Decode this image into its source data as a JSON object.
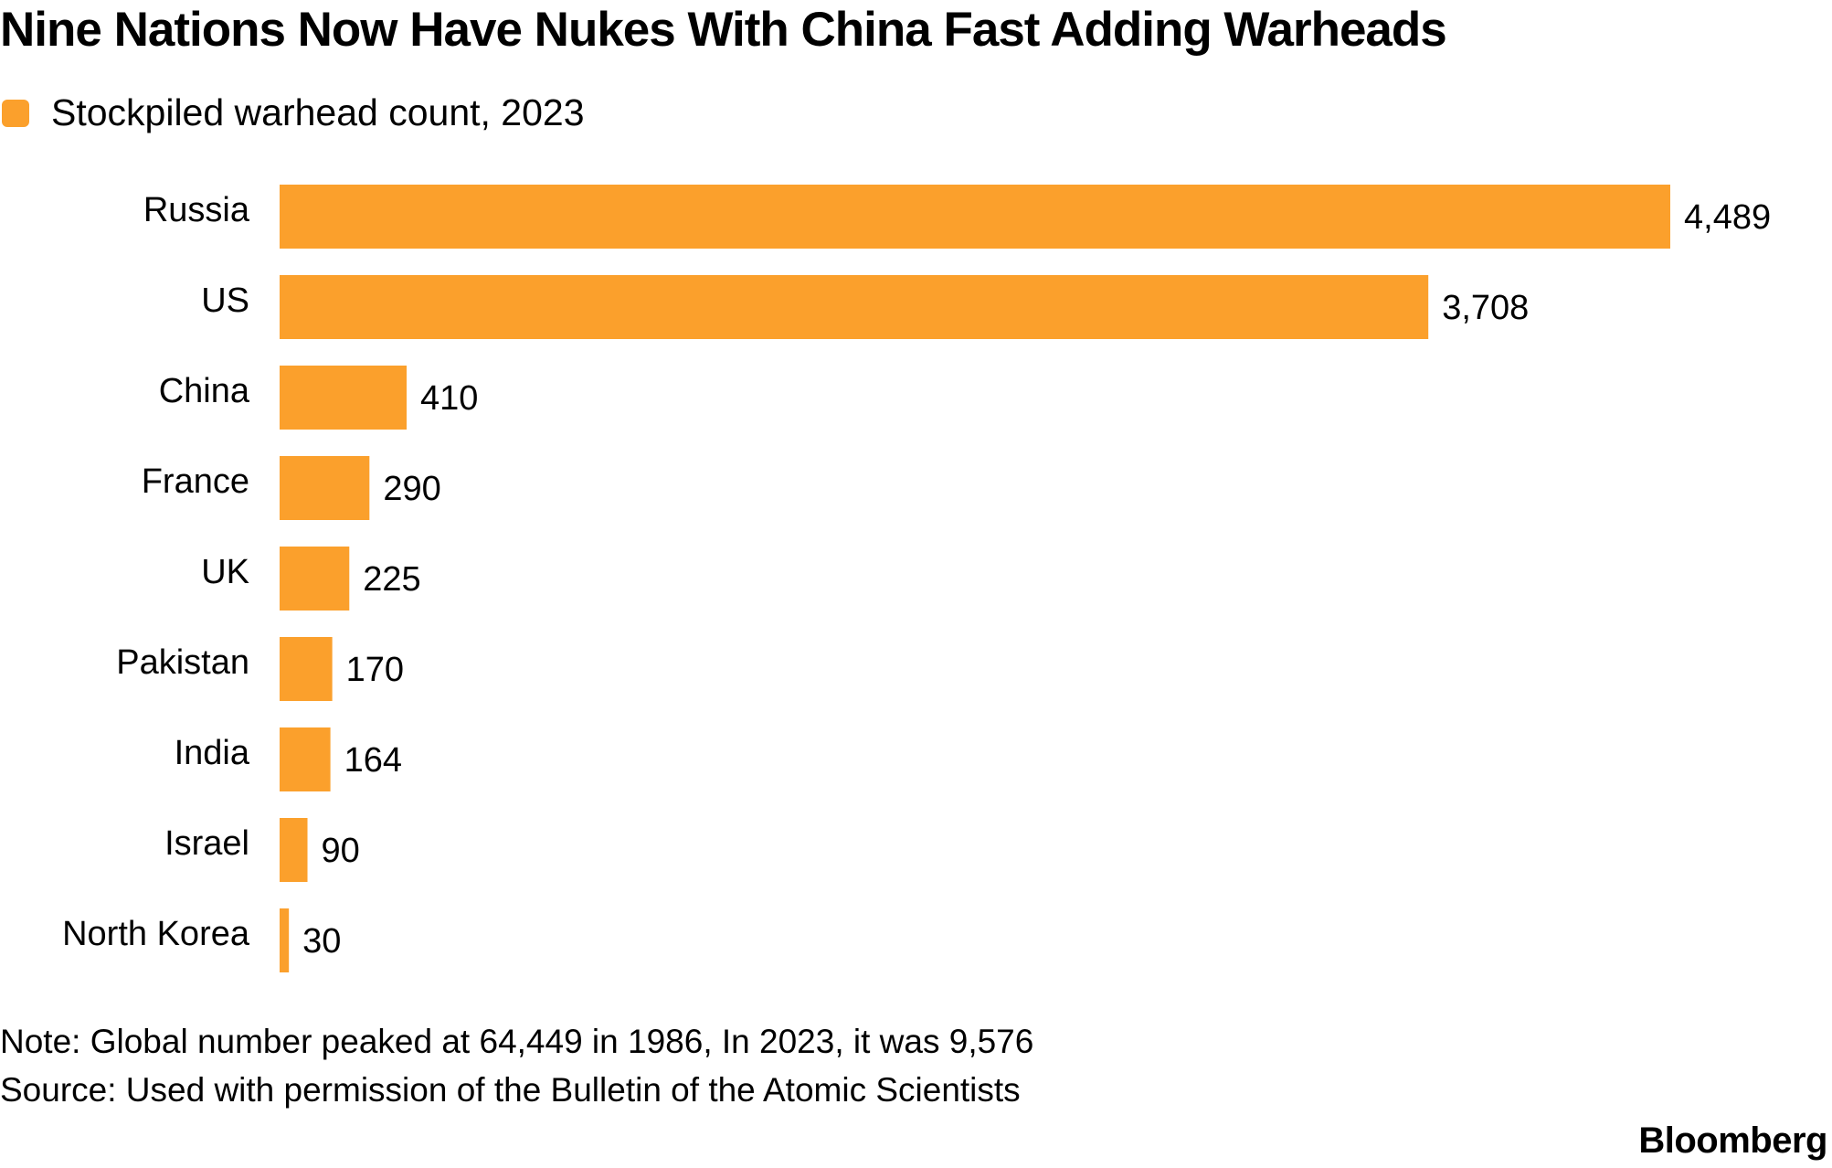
{
  "title": "Nine Nations Now Have Nukes With China Fast Adding Warheads",
  "legend": {
    "label": "Stockpiled warhead count, 2023",
    "color": "#fba02c"
  },
  "chart_data": {
    "type": "bar",
    "orientation": "horizontal",
    "title": "Nine Nations Now Have Nukes With China Fast Adding Warheads",
    "series": [
      {
        "name": "Stockpiled warhead count, 2023",
        "values": [
          4489,
          3708,
          410,
          290,
          225,
          170,
          164,
          90,
          30
        ]
      }
    ],
    "categories": [
      "Russia",
      "US",
      "China",
      "France",
      "UK",
      "Pakistan",
      "India",
      "Israel",
      "North Korea"
    ],
    "value_labels": [
      "4,489",
      "3,708",
      "410",
      "290",
      "225",
      "170",
      "164",
      "90",
      "30"
    ],
    "xlim": [
      0,
      4489
    ],
    "xlabel": "",
    "ylabel": "",
    "grid": false
  },
  "notes": {
    "note": "Note: Global number peaked at 64,449 in 1986, In 2023, it was 9,576",
    "source": "Source: Used with permission of the Bulletin of the Atomic Scientists"
  },
  "brand": "Bloomberg"
}
